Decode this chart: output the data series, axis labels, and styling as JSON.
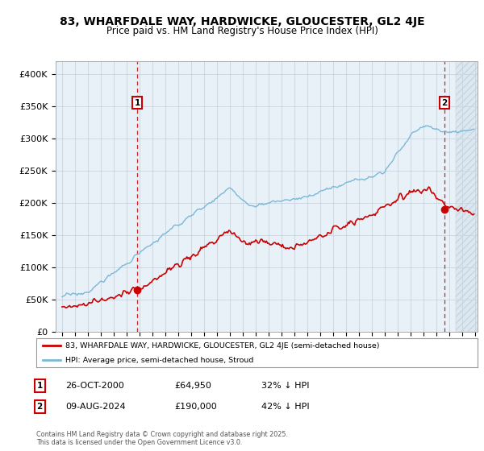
{
  "title": "83, WHARFDALE WAY, HARDWICKE, GLOUCESTER, GL2 4JE",
  "subtitle": "Price paid vs. HM Land Registry's House Price Index (HPI)",
  "ylabel_ticks": [
    "£0",
    "£50K",
    "£100K",
    "£150K",
    "£200K",
    "£250K",
    "£300K",
    "£350K",
    "£400K"
  ],
  "ytick_values": [
    0,
    50000,
    100000,
    150000,
    200000,
    250000,
    300000,
    350000,
    400000
  ],
  "ylim": [
    0,
    420000
  ],
  "xlim_start": 1994.5,
  "xlim_end": 2027.2,
  "hpi_color": "#7ab8d8",
  "price_color": "#cc0000",
  "marker1_year": 2000.82,
  "marker2_year": 2024.62,
  "marker1_price": 64950,
  "marker2_price": 190000,
  "legend_line1": "83, WHARFDALE WAY, HARDWICKE, GLOUCESTER, GL2 4JE (semi-detached house)",
  "legend_line2": "HPI: Average price, semi-detached house, Stroud",
  "annotation1_date": "26-OCT-2000",
  "annotation1_price": "£64,950",
  "annotation1_hpi": "32% ↓ HPI",
  "annotation2_date": "09-AUG-2024",
  "annotation2_price": "£190,000",
  "annotation2_hpi": "42% ↓ HPI",
  "footer": "Contains HM Land Registry data © Crown copyright and database right 2025.\nThis data is licensed under the Open Government Licence v3.0.",
  "background_color": "#ffffff",
  "grid_color": "#c8d4e0",
  "plot_bg_color": "#e8f0f8",
  "hatch_color": "#c8d4e0",
  "future_start": 2025.5
}
